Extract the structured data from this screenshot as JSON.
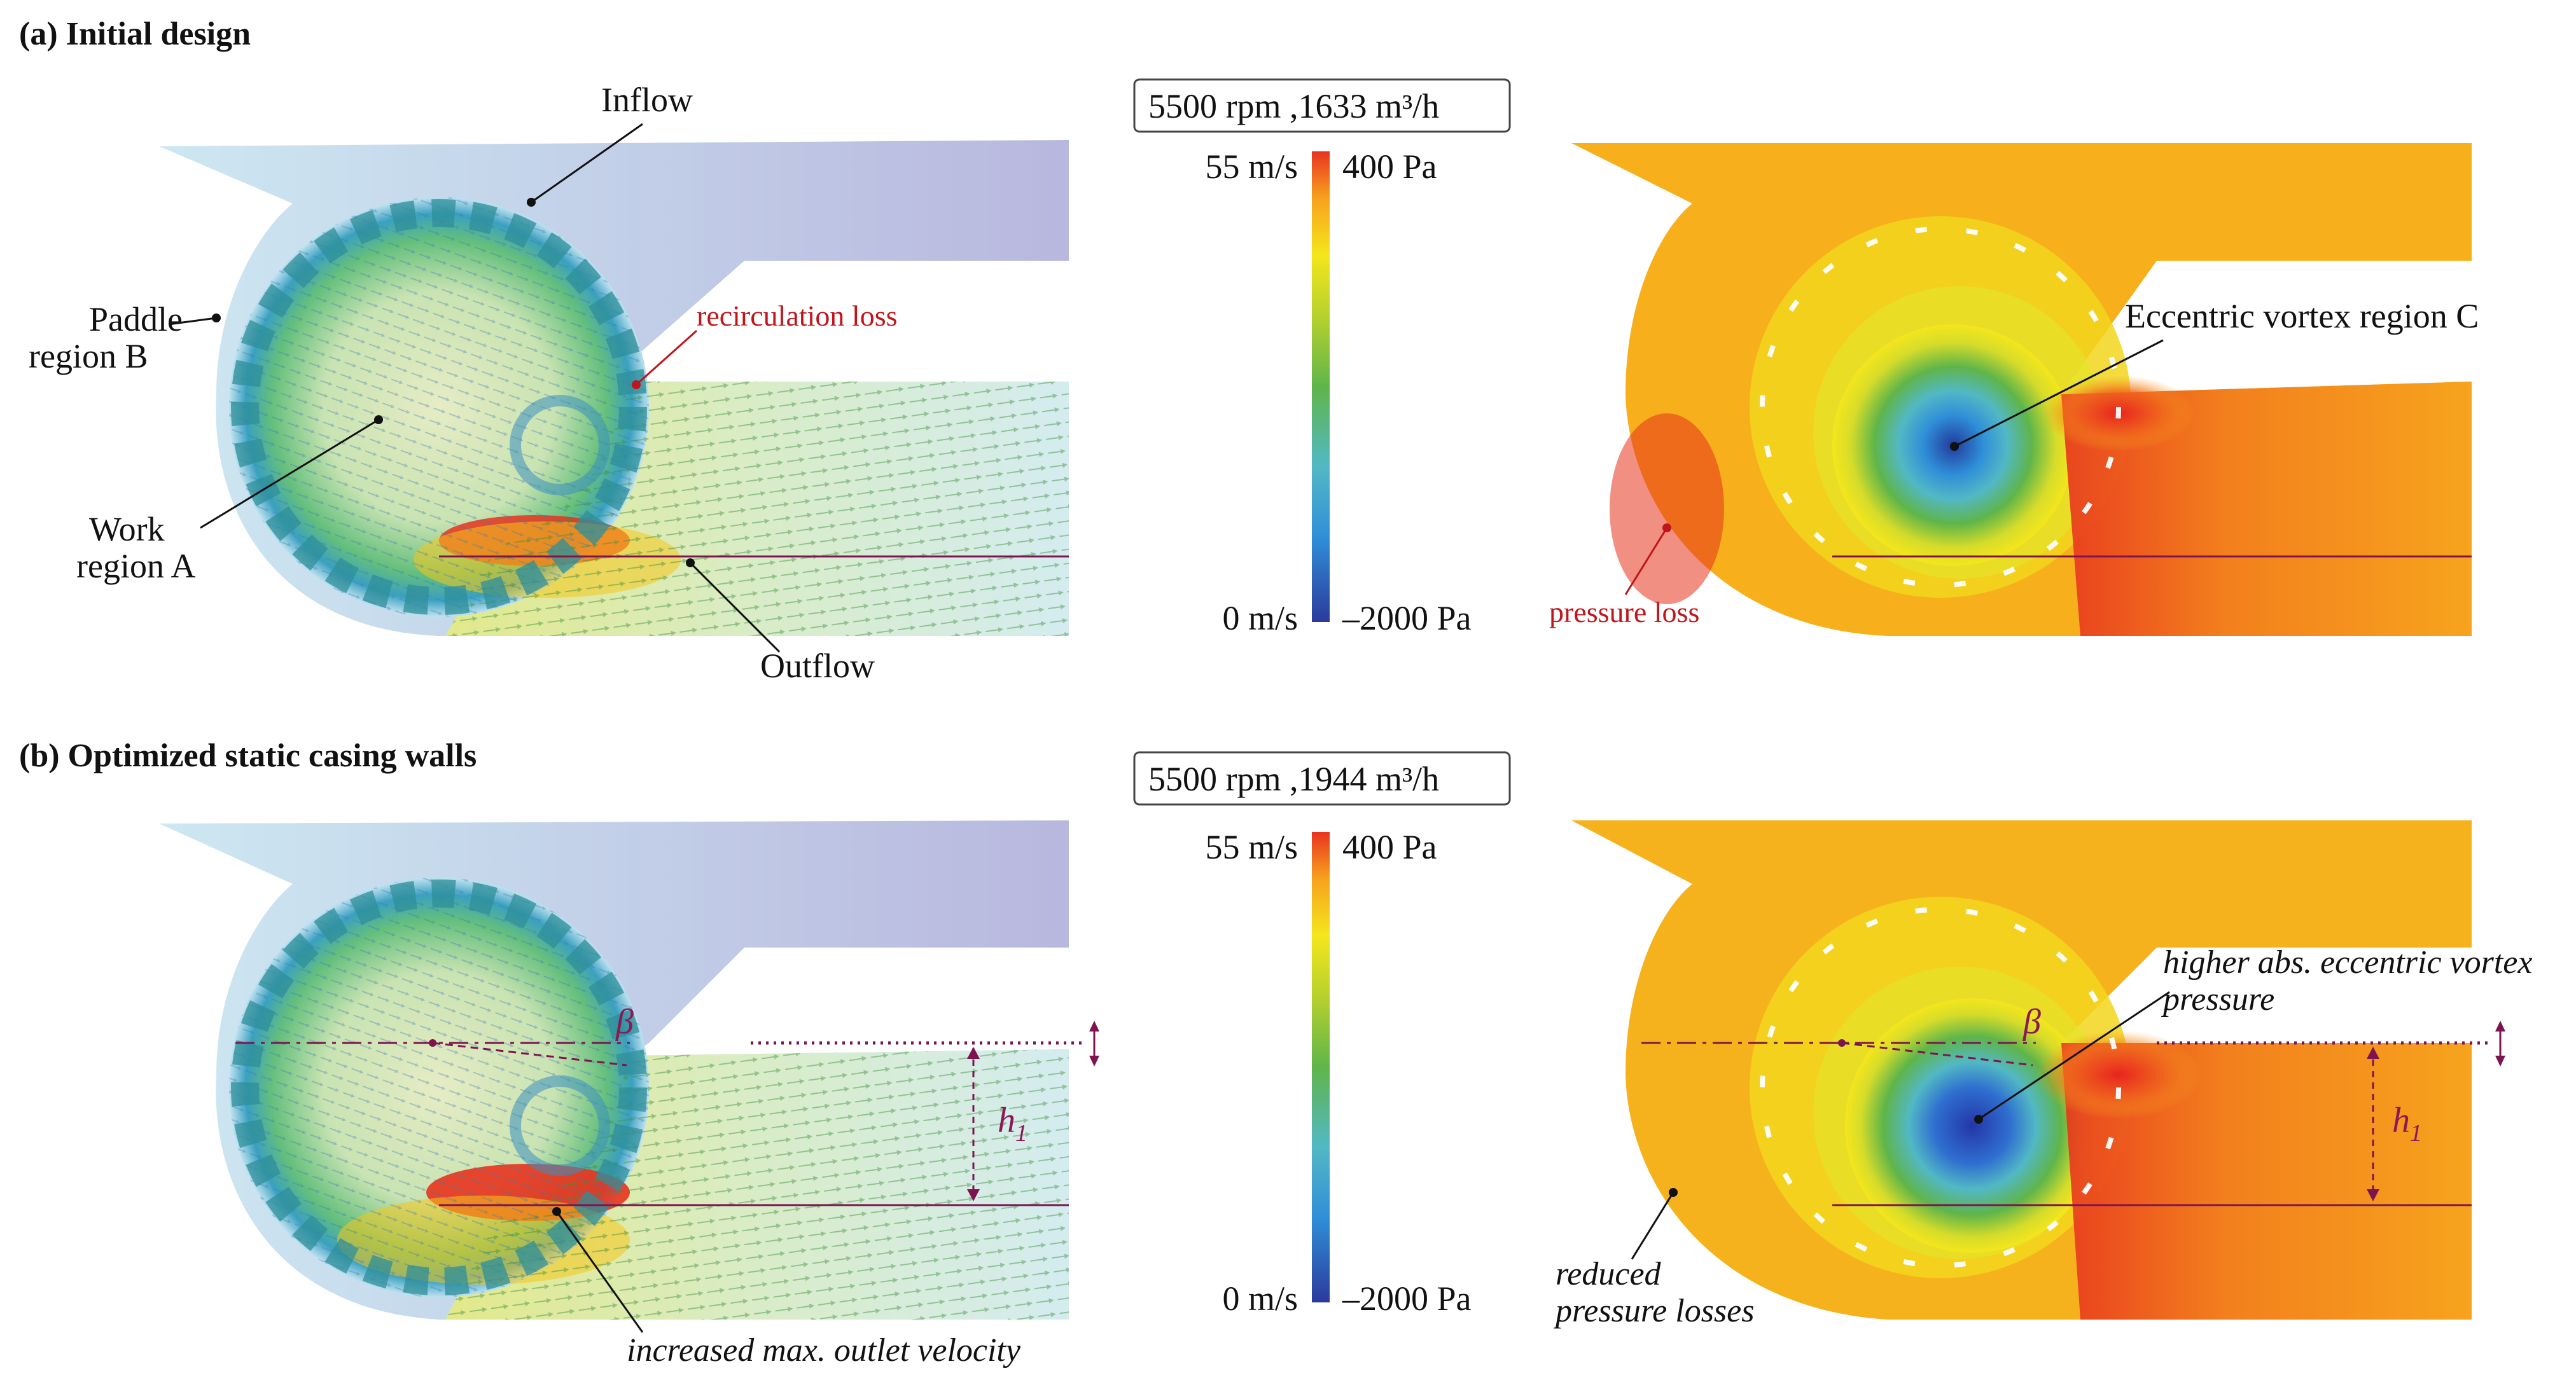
{
  "panel_a": {
    "heading": "(a) Initial design",
    "operating_point": "5500 rpm ,1633 m³/h",
    "annotations": {
      "inflow": "Inflow",
      "paddle_region_line1": "Paddle",
      "paddle_region_line2": "region B",
      "work_region_line1": "Work",
      "work_region_line2": "region A",
      "recirculation_loss": "recirculation loss",
      "outflow": "Outflow",
      "eccentric_vortex": "Eccentric vortex region C",
      "pressure_loss": "pressure loss"
    },
    "colorbar": {
      "velocity_max": "55 m/s",
      "velocity_min": "0 m/s",
      "pressure_max": "400 Pa",
      "pressure_min": "–2000 Pa"
    }
  },
  "panel_b": {
    "heading": "(b) Optimized static casing walls",
    "operating_point": "5500 rpm ,1944 m³/h",
    "annotations": {
      "beta": "β",
      "h1": "h",
      "h1_sub": "1",
      "increased_velocity": "increased max. outlet velocity",
      "vortex_pressure_line1": "higher abs. eccentric vortex",
      "vortex_pressure_line2": "pressure",
      "reduced_losses_line1": "reduced",
      "reduced_losses_line2": "pressure losses"
    },
    "colorbar": {
      "velocity_max": "55 m/s",
      "velocity_min": "0 m/s",
      "pressure_max": "400 Pa",
      "pressure_min": "–2000 Pa"
    }
  },
  "colors": {
    "annotation_red": "#c0151b",
    "geometry_magenta": "#7d1450",
    "colormap": [
      "#2b3a9c",
      "#2f8fd8",
      "#52b8c4",
      "#5fb54a",
      "#b7d12d",
      "#f4e61c",
      "#f7a21d",
      "#e8331e"
    ]
  }
}
